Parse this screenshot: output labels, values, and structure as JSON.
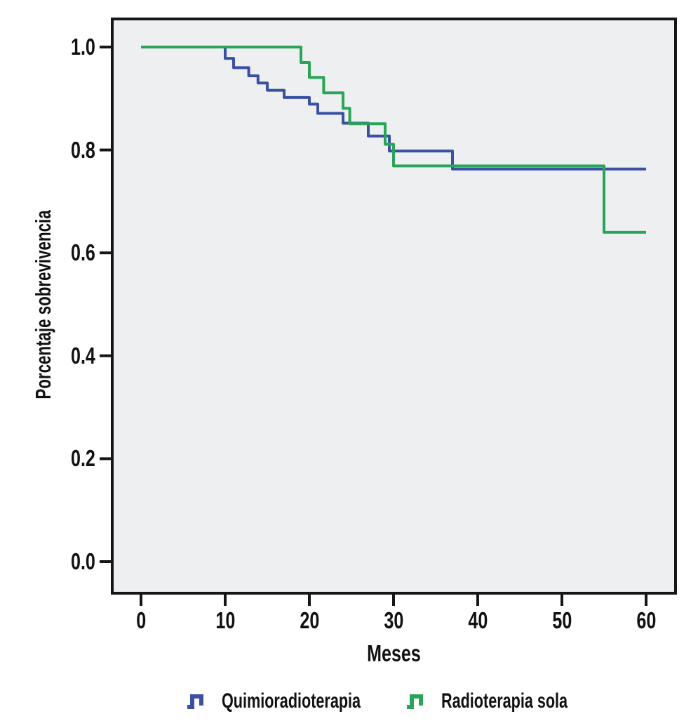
{
  "figure": {
    "background": "#ffffff",
    "plot_background": "#EDEFF0",
    "frame_color": "#161616",
    "tick_color": "#161616",
    "text_color": "#111111"
  },
  "chart_data": {
    "type": "line",
    "subtype": "kaplan-meier-step-survival",
    "title": "",
    "xlabel": "Meses",
    "ylabel": "Porcentaje sobrevivencia",
    "xlim": [
      0,
      60
    ],
    "ylim": [
      0.0,
      1.0
    ],
    "x_ticks": [
      0,
      10,
      20,
      30,
      40,
      50,
      60
    ],
    "y_ticks": [
      {
        "v": 1.0,
        "label": "1.0"
      },
      {
        "v": 0.8,
        "label": "0.8"
      },
      {
        "v": 0.6,
        "label": "0.6"
      },
      {
        "v": 0.4,
        "label": "0.4"
      },
      {
        "v": 0.2,
        "label": "0.2"
      },
      {
        "v": 0.0,
        "label": "0.0"
      }
    ],
    "grid": false,
    "legend_position": "bottom",
    "series": [
      {
        "name": "Quimioradioterapia",
        "color": "#3A51A3",
        "points": [
          [
            0,
            1.0
          ],
          [
            10,
            0.978
          ],
          [
            11,
            0.96
          ],
          [
            12.8,
            0.944
          ],
          [
            13.9,
            0.93
          ],
          [
            15,
            0.916
          ],
          [
            17,
            0.902
          ],
          [
            20,
            0.889
          ],
          [
            21,
            0.871
          ],
          [
            24,
            0.852
          ],
          [
            27,
            0.827
          ],
          [
            29.5,
            0.798
          ],
          [
            37,
            0.763
          ],
          [
            60,
            0.763
          ]
        ]
      },
      {
        "name": "Radioterapia sola",
        "color": "#2AA558",
        "points": [
          [
            0,
            1.0
          ],
          [
            19,
            0.97
          ],
          [
            20,
            0.941
          ],
          [
            21.7,
            0.911
          ],
          [
            24,
            0.881
          ],
          [
            24.8,
            0.851
          ],
          [
            29,
            0.811
          ],
          [
            30,
            0.769
          ],
          [
            55,
            0.64
          ],
          [
            60,
            0.64
          ]
        ]
      }
    ]
  },
  "legend": {
    "items": [
      {
        "label": "Quimioradioterapia",
        "color": "#3A51A3"
      },
      {
        "label": "Radioterapia sola",
        "color": "#2AA558"
      }
    ]
  }
}
